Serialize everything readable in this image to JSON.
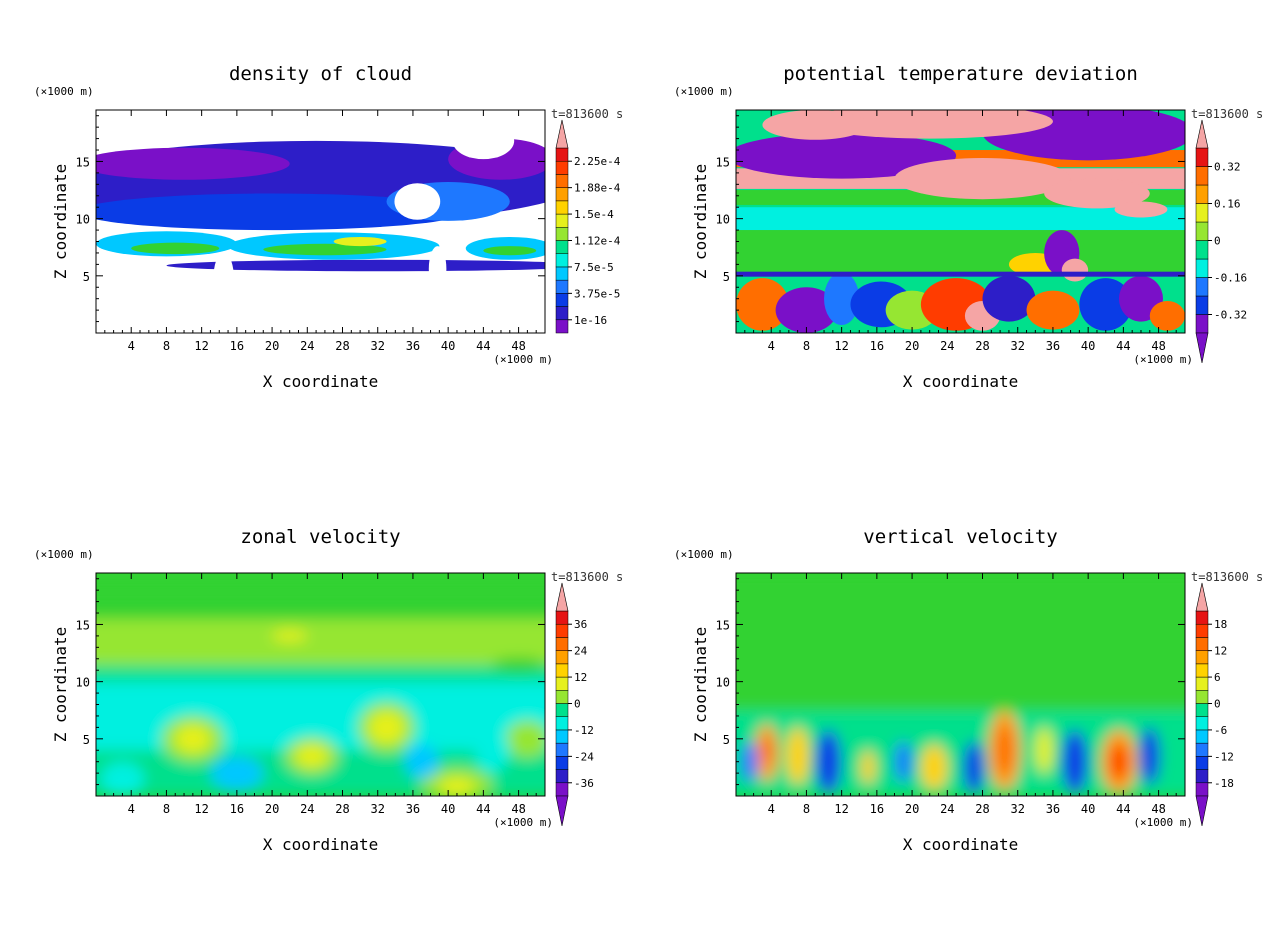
{
  "colors": {
    "scale": [
      "#7a10c8",
      "#2d1ec8",
      "#0a3ce6",
      "#1e78ff",
      "#00c8ff",
      "#00f0e0",
      "#00e08c",
      "#32d232",
      "#96e632",
      "#e6f01e",
      "#ffd200",
      "#ffa000",
      "#ff6e00",
      "#ff3c00",
      "#e61414",
      "#f5a5a5"
    ],
    "axes": "#000000",
    "background": "#ffffff"
  },
  "chart_data": [
    {
      "type": "heatmap",
      "title": "density of cloud",
      "xlabel": "X coordinate",
      "ylabel": "Z coordinate",
      "x_unit": "(×1000 m)",
      "y_unit": "(×1000 m)",
      "time_label": "t=813600 s",
      "xlim": [
        0,
        51
      ],
      "ylim": [
        0,
        19.5
      ],
      "x_ticks": [
        "4",
        "8",
        "12",
        "16",
        "20",
        "24",
        "28",
        "32",
        "36",
        "40",
        "44",
        "48"
      ],
      "y_ticks": [
        "5",
        "10",
        "15"
      ],
      "colorbar": {
        "labels": [
          "1e-16",
          "3.75e-5",
          "7.5e-5",
          "1.12e-4",
          "1.5e-4",
          "1.88e-4",
          "2.25e-4"
        ],
        "extend_min": false,
        "extend_max": true
      }
    },
    {
      "type": "heatmap",
      "title": "potential temperature deviation",
      "xlabel": "X coordinate",
      "ylabel": "Z coordinate",
      "x_unit": "(×1000 m)",
      "y_unit": "(×1000 m)",
      "time_label": "t=813600 s",
      "xlim": [
        0,
        51
      ],
      "ylim": [
        0,
        19.5
      ],
      "x_ticks": [
        "4",
        "8",
        "12",
        "16",
        "20",
        "24",
        "28",
        "32",
        "36",
        "40",
        "44",
        "48"
      ],
      "y_ticks": [
        "5",
        "10",
        "15"
      ],
      "colorbar": {
        "labels": [
          "-0.32",
          "-0.16",
          "0",
          "0.16",
          "0.32"
        ],
        "extend_min": true,
        "extend_max": true
      }
    },
    {
      "type": "heatmap",
      "title": "zonal velocity",
      "xlabel": "X coordinate",
      "ylabel": "Z coordinate",
      "x_unit": "(×1000 m)",
      "y_unit": "(×1000 m)",
      "time_label": "t=813600 s",
      "xlim": [
        0,
        51
      ],
      "ylim": [
        0,
        19.5
      ],
      "x_ticks": [
        "4",
        "8",
        "12",
        "16",
        "20",
        "24",
        "28",
        "32",
        "36",
        "40",
        "44",
        "48"
      ],
      "y_ticks": [
        "5",
        "10",
        "15"
      ],
      "colorbar": {
        "labels": [
          "-36",
          "-24",
          "-12",
          "0",
          "12",
          "24",
          "36"
        ],
        "extend_min": true,
        "extend_max": true
      }
    },
    {
      "type": "heatmap",
      "title": "vertical velocity",
      "xlabel": "X coordinate",
      "ylabel": "Z coordinate",
      "x_unit": "(×1000 m)",
      "y_unit": "(×1000 m)",
      "time_label": "t=813600 s",
      "xlim": [
        0,
        51
      ],
      "ylim": [
        0,
        19.5
      ],
      "x_ticks": [
        "4",
        "8",
        "12",
        "16",
        "20",
        "24",
        "28",
        "32",
        "36",
        "40",
        "44",
        "48"
      ],
      "y_ticks": [
        "5",
        "10",
        "15"
      ],
      "colorbar": {
        "labels": [
          "-18",
          "-12",
          "-6",
          "0",
          "6",
          "12",
          "18"
        ],
        "extend_min": true,
        "extend_max": true
      }
    }
  ]
}
